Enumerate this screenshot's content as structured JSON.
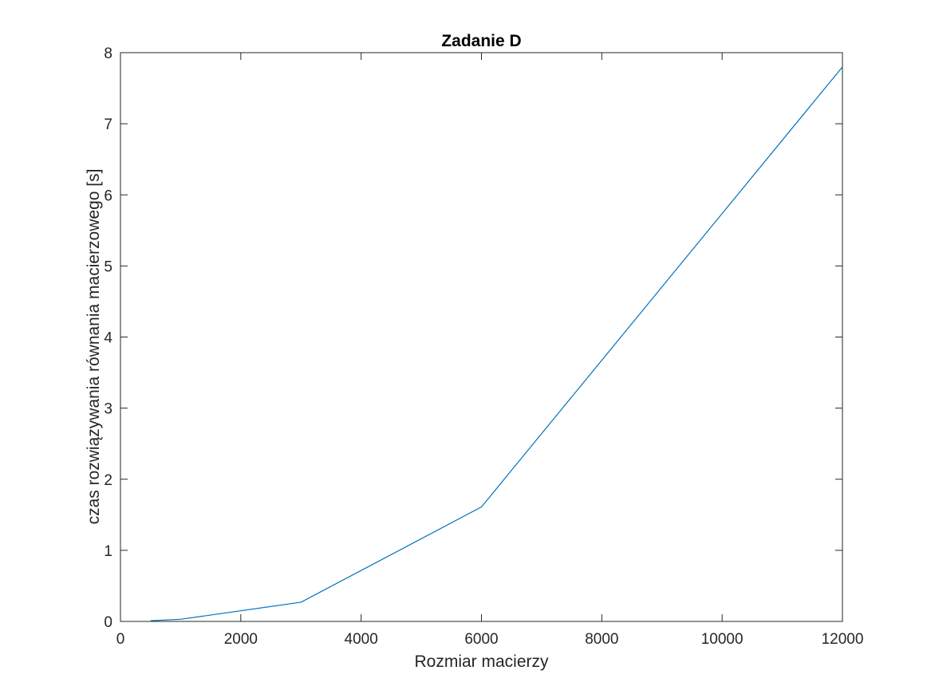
{
  "chart_data": {
    "type": "line",
    "title": "Zadanie D",
    "xlabel": "Rozmiar macierzy",
    "ylabel": "czas rozwiązywania równania macierzowego [s]",
    "xlim": [
      0,
      12000
    ],
    "ylim": [
      0,
      8
    ],
    "xticks": [
      0,
      2000,
      4000,
      6000,
      8000,
      10000,
      12000
    ],
    "xtick_labels": [
      "0",
      "2000",
      "4000",
      "6000",
      "8000",
      "10000",
      "12000"
    ],
    "yticks": [
      0,
      1,
      2,
      3,
      4,
      5,
      6,
      7,
      8
    ],
    "ytick_labels": [
      "0",
      "1",
      "2",
      "3",
      "4",
      "5",
      "6",
      "7",
      "8"
    ],
    "grid": false,
    "box": true,
    "series": [
      {
        "color": "#0072BD",
        "x": [
          500,
          1000,
          3000,
          6000,
          12000
        ],
        "y": [
          0.01,
          0.03,
          0.27,
          1.61,
          7.8
        ]
      }
    ]
  }
}
